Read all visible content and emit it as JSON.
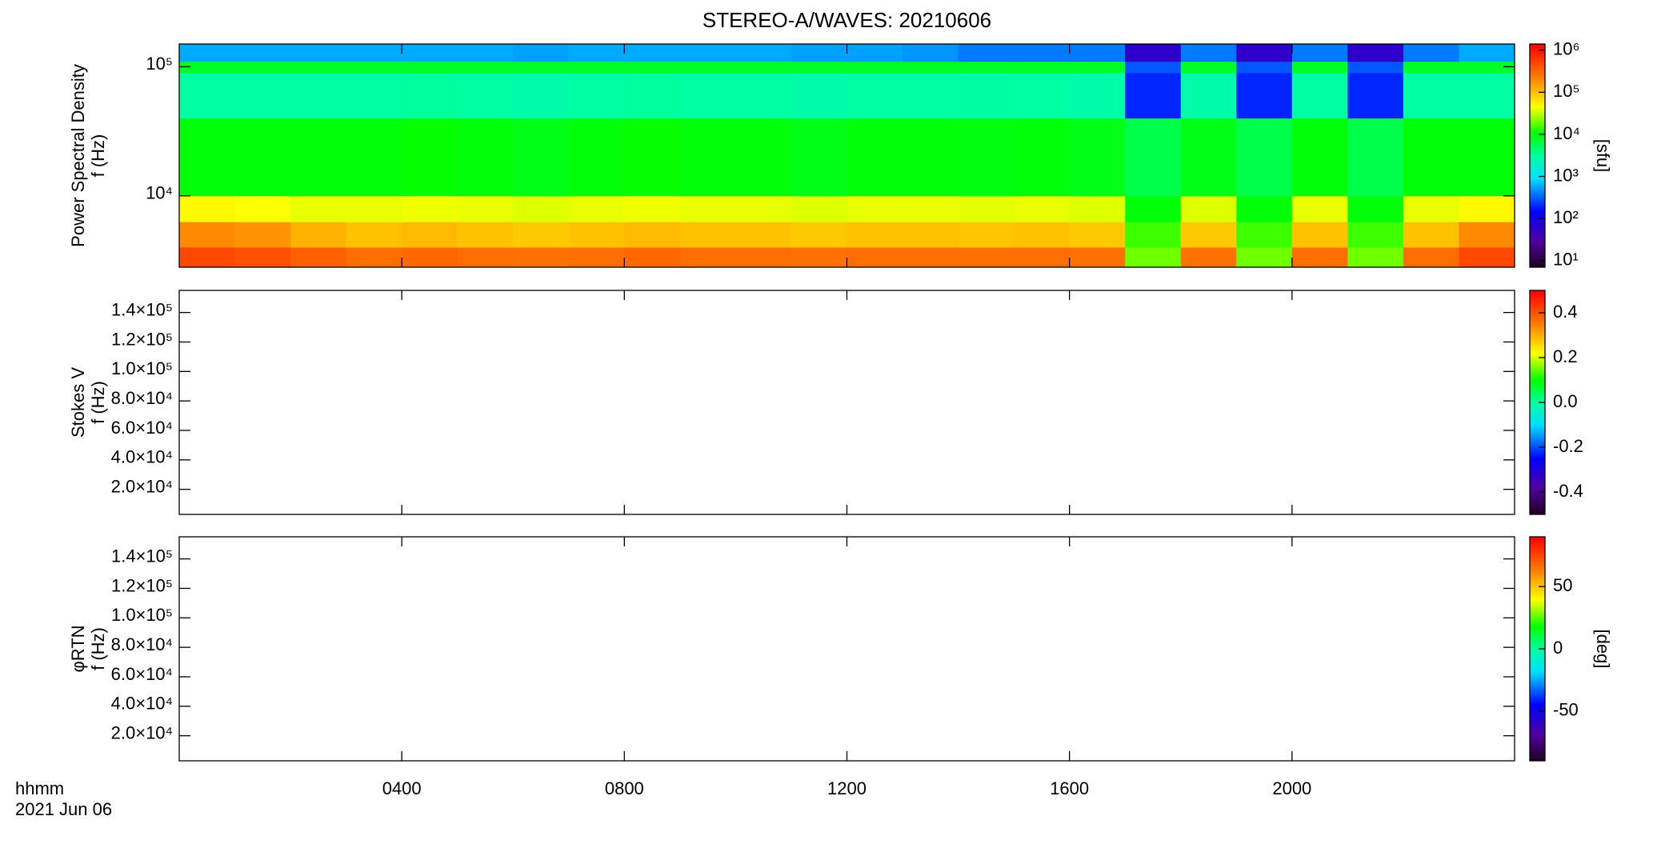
{
  "chart_data": [
    {
      "type": "heatmap",
      "title": "STEREO-A/WAVES: 20210606",
      "ylabel": [
        "Power Spectral Density",
        "f (Hz)"
      ],
      "xlim": [
        0,
        24
      ],
      "xticks": [
        {
          "value": 4,
          "label": "0400"
        },
        {
          "value": 8,
          "label": "0800"
        },
        {
          "value": 12,
          "label": "1200"
        },
        {
          "value": 16,
          "label": "1600"
        },
        {
          "value": 20,
          "label": "2000"
        }
      ],
      "ylog": true,
      "ylim": [
        2800,
        150000
      ],
      "yticks": [
        {
          "value": 10000,
          "label": "10⁴"
        },
        {
          "value": 100000,
          "label": "10⁵"
        }
      ],
      "x_edges": [
        0,
        1,
        2,
        3,
        4,
        5,
        6,
        7,
        8,
        9,
        10,
        11,
        12,
        13,
        14,
        15,
        16,
        17,
        18,
        19,
        20,
        21,
        22,
        23,
        24
      ],
      "y_edges": [
        2800,
        4000,
        6300,
        10000,
        40000,
        90000,
        110000,
        150000
      ],
      "z": [
        [
          500000,
          450000,
          350000,
          300000,
          320000,
          300000,
          280000,
          300000,
          320000,
          300000,
          300000,
          280000,
          300000,
          300000,
          290000,
          300000,
          280000,
          20000,
          280000,
          20000,
          300000,
          20000,
          300000,
          500000
        ],
        [
          200000,
          180000,
          120000,
          100000,
          110000,
          100000,
          90000,
          100000,
          110000,
          100000,
          100000,
          90000,
          100000,
          100000,
          95000,
          100000,
          90000,
          15000,
          90000,
          15000,
          100000,
          15000,
          100000,
          200000
        ],
        [
          50000,
          45000,
          40000,
          40000,
          42000,
          40000,
          38000,
          40000,
          42000,
          40000,
          40000,
          38000,
          40000,
          40000,
          39000,
          40000,
          38000,
          10000,
          38000,
          10000,
          40000,
          10000,
          40000,
          50000
        ],
        [
          10000,
          10000,
          10000,
          10000,
          11000,
          10000,
          9000,
          10000,
          11000,
          10000,
          10000,
          9000,
          10000,
          10000,
          9500,
          10000,
          9000,
          6000,
          9000,
          6000,
          10000,
          6000,
          10000,
          10000
        ],
        [
          3000,
          3000,
          3000,
          3000,
          3200,
          3000,
          2800,
          3000,
          3200,
          3000,
          3000,
          2800,
          3000,
          3000,
          2900,
          3000,
          2800,
          200,
          2800,
          200,
          3000,
          200,
          3000,
          3000
        ],
        [
          8000,
          8000,
          8000,
          8000,
          8000,
          8000,
          8000,
          8000,
          8000,
          8000,
          8000,
          8000,
          8000,
          8000,
          8000,
          8000,
          8000,
          300,
          8000,
          300,
          8000,
          300,
          8000,
          8000
        ],
        [
          600,
          600,
          600,
          600,
          600,
          600,
          550,
          600,
          600,
          600,
          600,
          550,
          550,
          500,
          400,
          400,
          400,
          60,
          400,
          60,
          400,
          60,
          400,
          600
        ]
      ],
      "zlog": true,
      "zlim": [
        7,
        1400000
      ],
      "zticks": [
        {
          "value": 10,
          "label": "10¹"
        },
        {
          "value": 100,
          "label": "10²"
        },
        {
          "value": 1000,
          "label": "10³"
        },
        {
          "value": 10000,
          "label": "10⁴"
        },
        {
          "value": 100000,
          "label": "10⁵"
        },
        {
          "value": 1000000,
          "label": "10⁶"
        }
      ],
      "zlabel": "[sfu]"
    },
    {
      "type": "heatmap",
      "ylabel": [
        "Stokes V",
        "f (Hz)"
      ],
      "xlim": [
        0,
        24
      ],
      "xticks": [
        4,
        8,
        12,
        16,
        20
      ],
      "ylim": [
        3000,
        155000
      ],
      "yticks": [
        {
          "value": 20000,
          "label": "2.0×10⁴"
        },
        {
          "value": 40000,
          "label": "4.0×10⁴"
        },
        {
          "value": 60000,
          "label": "6.0×10⁴"
        },
        {
          "value": 80000,
          "label": "8.0×10⁴"
        },
        {
          "value": 100000,
          "label": "1.0×10⁵"
        },
        {
          "value": 120000,
          "label": "1.2×10⁵"
        },
        {
          "value": 140000,
          "label": "1.4×10⁵"
        }
      ],
      "zlim": [
        -0.5,
        0.5
      ],
      "zticks": [
        {
          "value": -0.4,
          "label": "-0.4"
        },
        {
          "value": -0.2,
          "label": "-0.2"
        },
        {
          "value": 0,
          "label": "0.0"
        },
        {
          "value": 0.2,
          "label": "0.2"
        },
        {
          "value": 0.4,
          "label": "0.4"
        }
      ]
    },
    {
      "type": "heatmap",
      "ylabel": [
        "φRTN",
        "f (Hz)"
      ],
      "xlim": [
        0,
        24
      ],
      "xticks": [
        {
          "value": 4,
          "label": "0400"
        },
        {
          "value": 8,
          "label": "0800"
        },
        {
          "value": 12,
          "label": "1200"
        },
        {
          "value": 16,
          "label": "1600"
        },
        {
          "value": 20,
          "label": "2000"
        }
      ],
      "x_label": [
        "hhmm",
        "2021 Jun 06"
      ],
      "ylim": [
        3000,
        155000
      ],
      "yticks": [
        {
          "value": 20000,
          "label": "2.0×10⁴"
        },
        {
          "value": 40000,
          "label": "4.0×10⁴"
        },
        {
          "value": 60000,
          "label": "6.0×10⁴"
        },
        {
          "value": 80000,
          "label": "8.0×10⁴"
        },
        {
          "value": 100000,
          "label": "1.0×10⁵"
        },
        {
          "value": 120000,
          "label": "1.2×10⁵"
        },
        {
          "value": 140000,
          "label": "1.4×10⁵"
        }
      ],
      "zlim": [
        -90,
        90
      ],
      "zticks": [
        -50,
        0,
        50
      ],
      "zlabel": "[deg]"
    }
  ]
}
